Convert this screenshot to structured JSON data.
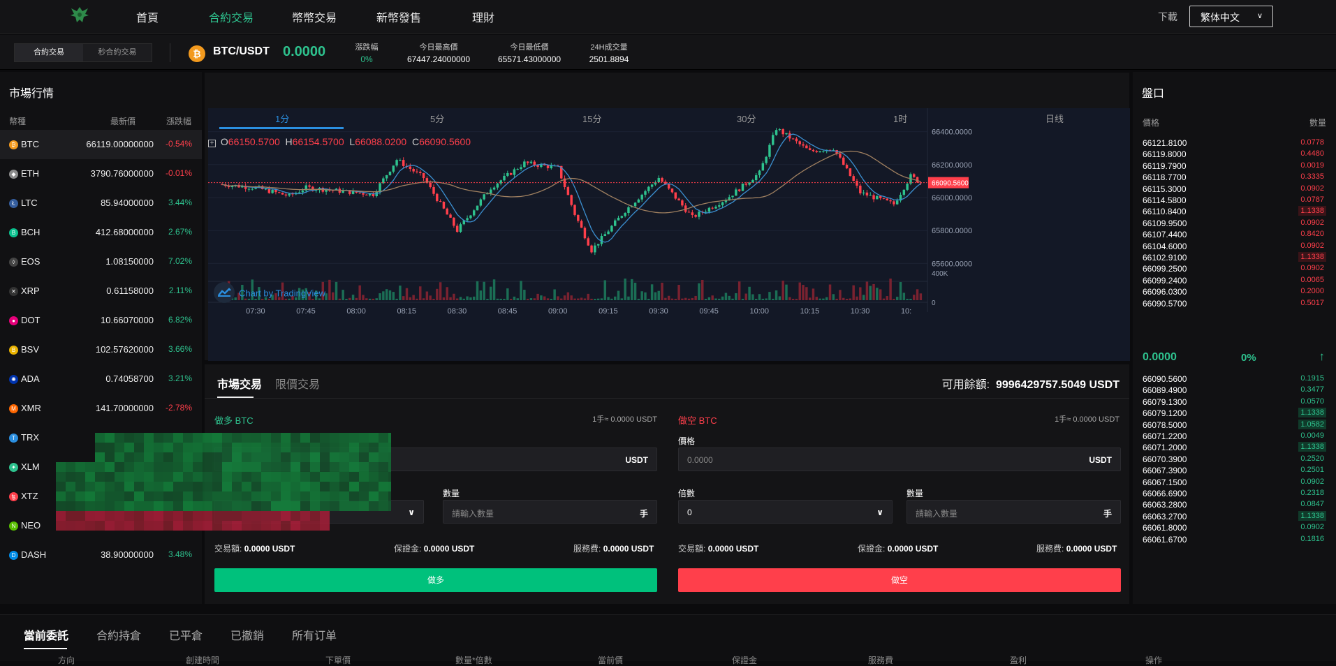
{
  "nav": {
    "items": [
      "首頁",
      "合約交易",
      "幣幣交易",
      "新幣發售",
      "理財"
    ],
    "active_index": 1,
    "download": "下載",
    "language": "繁体中文"
  },
  "ticker": {
    "tabs": [
      "合約交易",
      "秒合約交易"
    ],
    "pair": "BTC/USDT",
    "last_price": "0.0000",
    "stats": [
      {
        "label": "漲跌幅",
        "value": "0%"
      },
      {
        "label": "今日最高價",
        "value": "67447.24000000"
      },
      {
        "label": "今日最低價",
        "value": "65571.43000000"
      },
      {
        "label": "24H成交量",
        "value": "2501.8894"
      }
    ]
  },
  "market": {
    "title": "市場行情",
    "headers": [
      "幣種",
      "最新價",
      "漲跌幅"
    ],
    "rows": [
      {
        "sym": "BTC",
        "price": "66119.00000000",
        "change": "-0.54%",
        "color": "#f39a1e",
        "glyph": "₿"
      },
      {
        "sym": "ETH",
        "price": "3790.76000000",
        "change": "-0.01%",
        "color": "#8c8c8c",
        "glyph": "◆"
      },
      {
        "sym": "LTC",
        "price": "85.94000000",
        "change": "3.44%",
        "color": "#345d9d",
        "glyph": "Ł"
      },
      {
        "sym": "BCH",
        "price": "412.68000000",
        "change": "2.67%",
        "color": "#0ac18e",
        "glyph": "B"
      },
      {
        "sym": "EOS",
        "price": "1.08150000",
        "change": "7.02%",
        "color": "#444",
        "glyph": "◊"
      },
      {
        "sym": "XRP",
        "price": "0.61158000",
        "change": "2.11%",
        "color": "#333",
        "glyph": "✕"
      },
      {
        "sym": "DOT",
        "price": "10.66070000",
        "change": "6.82%",
        "color": "#e6007a",
        "glyph": "●"
      },
      {
        "sym": "BSV",
        "price": "102.57620000",
        "change": "3.66%",
        "color": "#eab300",
        "glyph": "B"
      },
      {
        "sym": "ADA",
        "price": "0.74058700",
        "change": "3.21%",
        "color": "#0033ad",
        "glyph": "✺"
      },
      {
        "sym": "XMR",
        "price": "141.70000000",
        "change": "-2.78%",
        "color": "#ff6600",
        "glyph": "M"
      },
      {
        "sym": "TRX",
        "price": "",
        "change": "",
        "color": "#2b8fe0",
        "glyph": "T"
      },
      {
        "sym": "XLM",
        "price": "",
        "change": "",
        "color": "#2ec28e",
        "glyph": "✦"
      },
      {
        "sym": "XTZ",
        "price": "",
        "change": "",
        "color": "#ff3f4b",
        "glyph": "ꜩ"
      },
      {
        "sym": "NEO",
        "price": "",
        "change": "",
        "color": "#58bf00",
        "glyph": "N"
      },
      {
        "sym": "DASH",
        "price": "38.90000000",
        "change": "3.48%",
        "color": "#008ce7",
        "glyph": "D"
      }
    ]
  },
  "chart": {
    "timeframes": [
      "1分",
      "5分",
      "15分",
      "30分",
      "1时",
      "日线"
    ],
    "active_timeframe": 0,
    "ohlc": {
      "O": "66150.5700",
      "H": "66154.5700",
      "L": "66088.0200",
      "C": "66090.5600"
    },
    "attribution": "Chart by TradingView",
    "price_ticks": [
      "66400.0000",
      "66200.0000",
      "66000.0000",
      "65800.0000",
      "65600.0000"
    ],
    "current_price_tag": "66090.5600",
    "volume_tick": "400K",
    "volume_zero": "0",
    "time_ticks": [
      "07:30",
      "07:45",
      "08:00",
      "08:15",
      "08:30",
      "08:45",
      "09:00",
      "09:15",
      "09:30",
      "09:45",
      "10:00",
      "10:15",
      "10:30",
      "10:"
    ]
  },
  "chart_data": {
    "type": "candlestick",
    "title": "",
    "ylabel": "",
    "ylim": [
      65500,
      66500
    ],
    "x_ticks": [
      "07:30",
      "07:45",
      "08:00",
      "08:15",
      "08:30",
      "08:45",
      "09:00",
      "09:15",
      "09:30",
      "09:45",
      "10:00",
      "10:15",
      "10:30"
    ],
    "approx_close_path": [
      {
        "t": "07:20",
        "v": 66080
      },
      {
        "t": "07:30",
        "v": 66060
      },
      {
        "t": "07:40",
        "v": 66010
      },
      {
        "t": "07:45",
        "v": 66060
      },
      {
        "t": "07:55",
        "v": 66040
      },
      {
        "t": "08:05",
        "v": 66020
      },
      {
        "t": "08:12",
        "v": 66230
      },
      {
        "t": "08:20",
        "v": 66120
      },
      {
        "t": "08:30",
        "v": 65800
      },
      {
        "t": "08:40",
        "v": 66060
      },
      {
        "t": "08:50",
        "v": 66210
      },
      {
        "t": "09:00",
        "v": 66180
      },
      {
        "t": "09:05",
        "v": 65900
      },
      {
        "t": "09:10",
        "v": 65680
      },
      {
        "t": "09:20",
        "v": 65920
      },
      {
        "t": "09:30",
        "v": 66120
      },
      {
        "t": "09:40",
        "v": 65880
      },
      {
        "t": "09:50",
        "v": 65990
      },
      {
        "t": "10:00",
        "v": 66150
      },
      {
        "t": "10:05",
        "v": 66420
      },
      {
        "t": "10:15",
        "v": 66280
      },
      {
        "t": "10:22",
        "v": 66300
      },
      {
        "t": "10:30",
        "v": 66030
      },
      {
        "t": "10:40",
        "v": 65960
      },
      {
        "t": "10:45",
        "v": 66130
      },
      {
        "t": "10:48",
        "v": 66090
      }
    ],
    "last": 66090.56
  },
  "trade": {
    "tabs": [
      "市場交易",
      "限價交易"
    ],
    "balance_label": "可用餘額:",
    "balance_value": "9996429757.5049 USDT",
    "long": {
      "title": "做多 BTC",
      "lot": "1手≈ 0.0000 USDT",
      "price_unit": "USDT",
      "qty_label": "數量",
      "qty_placeholder": "請輸入數量",
      "qty_unit": "手",
      "sum": [
        {
          "k": "交易額:",
          "v": "0.0000 USDT"
        },
        {
          "k": "保證金:",
          "v": "0.0000 USDT"
        },
        {
          "k": "服務費:",
          "v": "0.0000 USDT"
        }
      ],
      "button": "做多"
    },
    "short": {
      "title": "做空 BTC",
      "lot": "1手≈ 0.0000 USDT",
      "price_label": "價格",
      "price_value": "0.0000",
      "price_unit": "USDT",
      "mult_label": "倍數",
      "mult_value": "0",
      "qty_label": "數量",
      "qty_placeholder": "請輸入數量",
      "qty_unit": "手",
      "sum": [
        {
          "k": "交易額:",
          "v": "0.0000 USDT"
        },
        {
          "k": "保證金:",
          "v": "0.0000 USDT"
        },
        {
          "k": "服務費:",
          "v": "0.0000 USDT"
        }
      ],
      "button": "做空"
    }
  },
  "orderbook": {
    "title": "盤口",
    "headers": [
      "價格",
      "數量"
    ],
    "asks": [
      [
        "66121.8100",
        "0.0778",
        0
      ],
      [
        "66119.8000",
        "0.4480",
        0
      ],
      [
        "66119.7900",
        "0.0019",
        0
      ],
      [
        "66118.7700",
        "0.3335",
        0
      ],
      [
        "66115.3000",
        "0.0902",
        0
      ],
      [
        "66114.5800",
        "0.0787",
        0
      ],
      [
        "66110.8400",
        "1.1338",
        1
      ],
      [
        "66109.9500",
        "0.0902",
        0
      ],
      [
        "66107.4400",
        "0.8420",
        0
      ],
      [
        "66104.6000",
        "0.0902",
        0
      ],
      [
        "66102.9100",
        "1.1338",
        1
      ],
      [
        "66099.2500",
        "0.0902",
        0
      ],
      [
        "66099.2400",
        "0.0065",
        0
      ],
      [
        "66096.0300",
        "0.2000",
        0
      ],
      [
        "66090.5700",
        "0.5017",
        0
      ]
    ],
    "mid_price": "0.0000",
    "mid_change": "0%",
    "mid_arrow": "↑",
    "bids": [
      [
        "66090.5600",
        "0.1915",
        0
      ],
      [
        "66089.4900",
        "0.3477",
        0
      ],
      [
        "66079.1300",
        "0.0570",
        0
      ],
      [
        "66079.1200",
        "1.1338",
        1
      ],
      [
        "66078.5000",
        "1.0582",
        1
      ],
      [
        "66071.2200",
        "0.0049",
        0
      ],
      [
        "66071.2000",
        "1.1338",
        1
      ],
      [
        "66070.3900",
        "0.2520",
        0
      ],
      [
        "66067.3900",
        "0.2501",
        0
      ],
      [
        "66067.1500",
        "0.0902",
        0
      ],
      [
        "66066.6900",
        "0.2318",
        0
      ],
      [
        "66063.2800",
        "0.0847",
        0
      ],
      [
        "66063.2700",
        "1.1338",
        1
      ],
      [
        "66061.8000",
        "0.0902",
        0
      ],
      [
        "66061.6700",
        "0.1816",
        0
      ]
    ]
  },
  "orders": {
    "tabs": [
      "當前委託",
      "合約持倉",
      "已平倉",
      "已撤銷",
      "所有订单"
    ],
    "columns": [
      "方向",
      "創建時間",
      "下單價",
      "數量*倍數",
      "當前價",
      "保證金",
      "服務費",
      "盈利",
      "操作"
    ]
  },
  "colors": {
    "up": "#2ec28e",
    "down": "#ff3f4b",
    "accent": "#2b8fe0"
  }
}
